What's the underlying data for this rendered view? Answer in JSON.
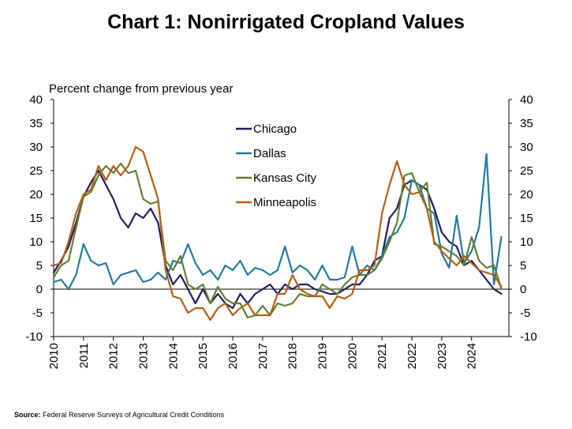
{
  "chart_data": {
    "type": "line",
    "title": "Chart 1: Nonirrigated Cropland Values",
    "ylabel": "Percent change from previous year",
    "ylim": [
      -10,
      40
    ],
    "yticks": [
      -10,
      -5,
      0,
      5,
      10,
      15,
      20,
      25,
      30,
      35,
      40
    ],
    "y_tick_labels": [
      "-10",
      "-5",
      "0",
      "5",
      "10",
      "15",
      "20",
      "25",
      "30",
      "35",
      "40"
    ],
    "right_axis_mirrors_left": true,
    "xlim": [
      2010,
      2025.25
    ],
    "x_tick_labels": [
      "2010",
      "2011",
      "2012",
      "2013",
      "2014",
      "2015",
      "2016",
      "2017",
      "2018",
      "2019",
      "2020",
      "2021",
      "2022",
      "2023",
      "2024"
    ],
    "legend_position": "center-left inside plot",
    "grid": false,
    "series": [
      {
        "name": "Chicago",
        "color": "#1f1a5e",
        "x": [
          2010.0,
          2010.25,
          2010.5,
          2010.75,
          2011.0,
          2011.25,
          2011.5,
          2011.75,
          2012.0,
          2012.25,
          2012.5,
          2012.75,
          2013.0,
          2013.25,
          2013.5,
          2013.75,
          2014.0,
          2014.25,
          2014.5,
          2014.75,
          2015.0,
          2015.25,
          2015.5,
          2015.75,
          2016.0,
          2016.25,
          2016.5,
          2016.75,
          2017.0,
          2017.25,
          2017.5,
          2017.75,
          2018.0,
          2018.25,
          2018.5,
          2018.75,
          2019.0,
          2019.25,
          2019.5,
          2019.75,
          2020.0,
          2020.25,
          2020.5,
          2020.75,
          2021.0,
          2021.25,
          2021.5,
          2021.75,
          2022.0,
          2022.25,
          2022.5,
          2022.75,
          2023.0,
          2023.25,
          2023.5,
          2023.75,
          2024.0,
          2024.25,
          2024.5,
          2024.75,
          2025.0
        ],
        "y": [
          3.5,
          6,
          9,
          14,
          19.5,
          22.5,
          25,
          22,
          19,
          15,
          13,
          16,
          15,
          17,
          14,
          5,
          1,
          3,
          0,
          -3,
          0,
          -3,
          -1,
          -3,
          -4,
          -1,
          -3,
          -1,
          0,
          1,
          -1,
          1,
          0,
          1,
          1,
          0,
          -0.5,
          -1,
          -1,
          0,
          1,
          1,
          3,
          6,
          7,
          15,
          17,
          22,
          23,
          22,
          21,
          17,
          12,
          10,
          9,
          5,
          6,
          4,
          2,
          0,
          -1
        ]
      },
      {
        "name": "Dallas",
        "color": "#1f7a9e",
        "x": [
          2010.0,
          2010.25,
          2010.5,
          2010.75,
          2011.0,
          2011.25,
          2011.5,
          2011.75,
          2012.0,
          2012.25,
          2012.5,
          2012.75,
          2013.0,
          2013.25,
          2013.5,
          2013.75,
          2014.0,
          2014.25,
          2014.5,
          2014.75,
          2015.0,
          2015.25,
          2015.5,
          2015.75,
          2016.0,
          2016.25,
          2016.5,
          2016.75,
          2017.0,
          2017.25,
          2017.5,
          2017.75,
          2018.0,
          2018.25,
          2018.5,
          2018.75,
          2019.0,
          2019.25,
          2019.5,
          2019.75,
          2020.0,
          2020.25,
          2020.5,
          2020.75,
          2021.0,
          2021.25,
          2021.5,
          2021.75,
          2022.0,
          2022.25,
          2022.5,
          2022.75,
          2023.0,
          2023.25,
          2023.5,
          2023.75,
          2024.0,
          2024.25,
          2024.5,
          2024.75,
          2025.0
        ],
        "y": [
          1.5,
          2,
          0,
          3,
          9.5,
          6,
          5,
          5.5,
          1,
          3,
          3.5,
          4,
          1.5,
          2,
          3.5,
          2,
          6,
          5.5,
          9.5,
          5.5,
          3,
          4,
          2,
          5,
          4,
          6,
          3,
          4.5,
          4,
          3,
          4,
          9,
          3.5,
          5,
          4,
          2,
          5,
          2,
          2,
          2.5,
          9,
          3,
          5,
          4,
          7,
          11,
          12,
          15,
          23,
          22,
          17,
          16,
          7.5,
          4.5,
          15.5,
          5.5,
          8,
          13,
          28.5,
          1,
          11
        ]
      },
      {
        "name": "Kansas City",
        "color": "#5f7f2f",
        "x": [
          2010.0,
          2010.25,
          2010.5,
          2010.75,
          2011.0,
          2011.25,
          2011.5,
          2011.75,
          2012.0,
          2012.25,
          2012.5,
          2012.75,
          2013.0,
          2013.25,
          2013.5,
          2013.75,
          2014.0,
          2014.25,
          2014.5,
          2014.75,
          2015.0,
          2015.25,
          2015.5,
          2015.75,
          2016.0,
          2016.25,
          2016.5,
          2016.75,
          2017.0,
          2017.25,
          2017.5,
          2017.75,
          2018.0,
          2018.25,
          2018.5,
          2018.75,
          2019.0,
          2019.25,
          2019.5,
          2019.75,
          2020.0,
          2020.25,
          2020.5,
          2020.75,
          2021.0,
          2021.25,
          2021.5,
          2021.75,
          2022.0,
          2022.25,
          2022.5,
          2022.75,
          2023.0,
          2023.25,
          2023.5,
          2023.75,
          2024.0,
          2024.25,
          2024.5,
          2024.75,
          2025.0
        ],
        "y": [
          2.5,
          5,
          6,
          13,
          19.5,
          20.5,
          24,
          26,
          24.5,
          26.5,
          24.5,
          25,
          19,
          18,
          18.5,
          6,
          4,
          7,
          1,
          0,
          1,
          -3,
          0.5,
          -2,
          -3,
          -3,
          -6,
          -5.5,
          -3.5,
          -5.5,
          -3,
          -3.5,
          -3,
          -1,
          -1.5,
          -1.5,
          1,
          0,
          -1,
          1,
          2.5,
          3,
          3,
          4,
          6.5,
          10,
          14,
          24,
          24.5,
          20.5,
          22.5,
          9.5,
          9,
          8,
          7,
          5,
          11,
          6,
          4.5,
          5,
          0
        ]
      },
      {
        "name": "Minneapolis",
        "color": "#b35e14",
        "x": [
          2010.0,
          2010.25,
          2010.5,
          2010.75,
          2011.0,
          2011.25,
          2011.5,
          2011.75,
          2012.0,
          2012.25,
          2012.5,
          2012.75,
          2013.0,
          2013.25,
          2013.5,
          2013.75,
          2014.0,
          2014.25,
          2014.5,
          2014.75,
          2015.0,
          2015.25,
          2015.5,
          2015.75,
          2016.0,
          2016.25,
          2016.5,
          2016.75,
          2017.0,
          2017.25,
          2017.5,
          2017.75,
          2018.0,
          2018.25,
          2018.5,
          2018.75,
          2019.0,
          2019.25,
          2019.5,
          2019.75,
          2020.0,
          2020.25,
          2020.5,
          2020.75,
          2021.0,
          2021.25,
          2021.5,
          2021.75,
          2022.0,
          2022.25,
          2022.5,
          2022.75,
          2023.0,
          2023.25,
          2023.5,
          2023.75,
          2024.0,
          2024.25,
          2024.5,
          2024.75,
          2025.0
        ],
        "y": [
          5,
          5.5,
          10,
          16,
          20,
          21,
          26,
          23,
          26,
          24,
          26,
          30,
          29,
          24,
          19,
          4,
          -1.5,
          -2,
          -5,
          -4,
          -4,
          -6.5,
          -4,
          -3,
          -5.5,
          -4,
          -3,
          -5.5,
          -5.5,
          -5.5,
          -1,
          -1,
          3,
          0,
          -1,
          -1.5,
          -1.5,
          -4,
          -1.5,
          -2,
          -1,
          4,
          4,
          5,
          16,
          22,
          27,
          22,
          20,
          20.5,
          17,
          10,
          8,
          6.5,
          5,
          7,
          5.5,
          4,
          3.5,
          3,
          0.5
        ]
      }
    ]
  },
  "source": {
    "label": "Source:",
    "text": "Federal Reserve Surveys of Agricultural Credit Conditions"
  }
}
